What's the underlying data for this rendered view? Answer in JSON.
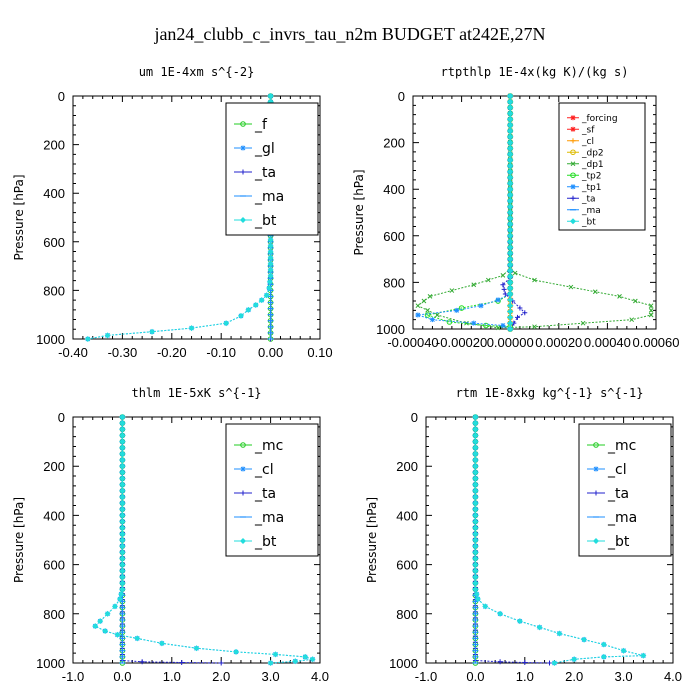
{
  "figure": {
    "title": "jan24_clubb_c_invrs_tau_n2m  BUDGET at242E,27N"
  },
  "chart_data": [
    {
      "type": "line",
      "title": "um   1E-4xm s^{-2}",
      "ylabel": "Pressure [hPa]",
      "xlim": [
        -0.4,
        0.1
      ],
      "ylim": [
        1000,
        0
      ],
      "xticks": [
        "-0.40",
        "-0.30",
        "-0.20",
        "-0.10",
        "0.00",
        "0.10"
      ],
      "xtick_values": [
        -0.4,
        -0.3,
        -0.2,
        -0.1,
        0.0,
        0.1
      ],
      "yticks": [
        "0",
        "200",
        "400",
        "600",
        "800",
        "1000"
      ],
      "ytick_values": [
        0,
        200,
        400,
        600,
        800,
        1000
      ],
      "legend_position": "top-right",
      "series": [
        {
          "name": "_f",
          "color": "#22cc22",
          "marker": "circle",
          "x": [
            0.0,
            0.0,
            0.0
          ],
          "y": [
            0,
            500,
            1000
          ]
        },
        {
          "name": "_gl",
          "color": "#1e8fff",
          "marker": "star",
          "x": [
            -0.37,
            -0.33,
            -0.24,
            -0.16,
            -0.09,
            -0.06,
            -0.045,
            -0.03,
            -0.018,
            -0.008,
            -0.003,
            0.0,
            0.0
          ],
          "y": [
            1000,
            985,
            970,
            955,
            935,
            905,
            880,
            860,
            840,
            820,
            790,
            740,
            0
          ]
        },
        {
          "name": "_ta",
          "color": "#2222cc",
          "marker": "plus",
          "x": [
            0.0,
            0.0
          ],
          "y": [
            0,
            1000
          ]
        },
        {
          "name": "_ma",
          "color": "#1e8fff",
          "marker": "dash",
          "x": [
            0.0,
            0.0
          ],
          "y": [
            0,
            1000
          ]
        },
        {
          "name": "_bt",
          "color": "#22dddd",
          "marker": "diamond",
          "x": [
            -0.37,
            -0.33,
            -0.24,
            -0.16,
            -0.09,
            -0.06,
            -0.045,
            -0.03,
            -0.018,
            -0.008,
            -0.003,
            0.0,
            0.0
          ],
          "y": [
            1000,
            985,
            970,
            955,
            935,
            905,
            880,
            860,
            840,
            820,
            790,
            740,
            0
          ]
        }
      ]
    },
    {
      "type": "line",
      "title": "rtpthlp   1E-4x(kg K)/(kg s)",
      "ylabel": "Pressure [hPa]",
      "xlim": [
        -0.0004,
        0.0006
      ],
      "ylim": [
        1000,
        0
      ],
      "xticks": [
        "-0.00040",
        "-0.00020",
        "0.00000",
        "0.00020",
        "0.00040",
        "0.00060"
      ],
      "xtick_values": [
        -0.0004,
        -0.0002,
        0.0,
        0.0002,
        0.0004,
        0.0006
      ],
      "yticks": [
        "0",
        "200",
        "400",
        "600",
        "800",
        "1000"
      ],
      "ytick_values": [
        0,
        200,
        400,
        600,
        800,
        1000
      ],
      "legend_position": "top-right",
      "series": [
        {
          "name": "_forcing",
          "color": "#ff2020",
          "marker": "star",
          "x": [
            0.0,
            0.0
          ],
          "y": [
            0,
            1000
          ]
        },
        {
          "name": "_sf",
          "color": "#ff2020",
          "marker": "star",
          "x": [
            0.0,
            0.0
          ],
          "y": [
            0,
            1000
          ]
        },
        {
          "name": "_cl",
          "color": "#ff9900",
          "marker": "plus",
          "x": [
            0.0,
            0.0
          ],
          "y": [
            0,
            1000
          ]
        },
        {
          "name": "_dp2",
          "color": "#ddbb00",
          "marker": "circle",
          "x": [
            0.0,
            0.0
          ],
          "y": [
            0,
            1000
          ]
        },
        {
          "name": "_dp1",
          "color": "#33aa33",
          "marker": "cross",
          "x": [
            0.0,
            0.0,
            -3e-05,
            -0.00015,
            -0.00033,
            -0.00038,
            -0.0003,
            -0.00018,
            -5e-05,
            0.0001,
            0.0003,
            0.0005,
            0.00058,
            0.00058,
            0.00045,
            0.00025,
            0.0001,
            2e-05,
            0.0
          ],
          "y": [
            0,
            740,
            770,
            810,
            860,
            900,
            940,
            975,
            995,
            990,
            975,
            960,
            940,
            900,
            860,
            820,
            790,
            760,
            740
          ]
        },
        {
          "name": "_tp2",
          "color": "#22dd22",
          "marker": "circle",
          "x": [
            0.0,
            0.0,
            -5e-05,
            -0.0002,
            -0.00034,
            -0.00025,
            -0.0001,
            0.0,
            0.0
          ],
          "y": [
            0,
            850,
            880,
            910,
            940,
            970,
            985,
            990,
            1000
          ]
        },
        {
          "name": "_tp1",
          "color": "#1e8fff",
          "marker": "star",
          "x": [
            0.0,
            0.0,
            -5e-05,
            -0.00012,
            -0.00022,
            -0.00038,
            -0.00032,
            -0.00015,
            -3e-05,
            0.0
          ],
          "y": [
            0,
            850,
            875,
            900,
            920,
            940,
            960,
            975,
            985,
            1000
          ]
        },
        {
          "name": "_ta",
          "color": "#2222cc",
          "marker": "plus",
          "x": [
            0.0,
            0.0,
            -3e-05,
            -2e-05,
            1e-05,
            4e-05,
            6e-05,
            3e-05,
            0.0
          ],
          "y": [
            0,
            780,
            810,
            850,
            880,
            910,
            930,
            950,
            1000
          ]
        },
        {
          "name": "_ma",
          "color": "#1e8fff",
          "marker": "dash",
          "x": [
            0.0,
            0.0
          ],
          "y": [
            0,
            1000
          ]
        },
        {
          "name": "_bt",
          "color": "#22dddd",
          "marker": "diamond",
          "x": [
            0.0,
            0.0
          ],
          "y": [
            0,
            1000
          ]
        }
      ]
    },
    {
      "type": "line",
      "title": "thlm   1E-5xK s^{-1}",
      "ylabel": "Pressure [hPa]",
      "xlim": [
        -1.0,
        4.0
      ],
      "ylim": [
        1000,
        0
      ],
      "xticks": [
        "-1.0",
        "0.0",
        "1.0",
        "2.0",
        "3.0",
        "4.0"
      ],
      "xtick_values": [
        -1.0,
        0.0,
        1.0,
        2.0,
        3.0,
        4.0
      ],
      "yticks": [
        "0",
        "200",
        "400",
        "600",
        "800",
        "1000"
      ],
      "ytick_values": [
        0,
        200,
        400,
        600,
        800,
        1000
      ],
      "legend_position": "top-right",
      "series": [
        {
          "name": "_mc",
          "color": "#22cc22",
          "marker": "circle",
          "x": [
            0.0,
            0.0
          ],
          "y": [
            0,
            1000
          ]
        },
        {
          "name": "_cl",
          "color": "#1e8fff",
          "marker": "star",
          "x": [
            0.0,
            0.0,
            -0.05,
            -0.15,
            -0.3,
            -0.45,
            -0.55,
            -0.35,
            -0.1,
            0.3,
            0.8,
            1.5,
            2.3,
            3.1,
            3.7,
            3.85,
            3.5,
            3.0
          ],
          "y": [
            0,
            700,
            740,
            770,
            800,
            830,
            850,
            870,
            885,
            900,
            920,
            940,
            955,
            965,
            975,
            985,
            993,
            1000
          ]
        },
        {
          "name": "_ta",
          "color": "#2222cc",
          "marker": "plus",
          "x": [
            0.0,
            0.0,
            0.4,
            1.2,
            2.0
          ],
          "y": [
            0,
            990,
            995,
            998,
            1000
          ]
        },
        {
          "name": "_ma",
          "color": "#1e8fff",
          "marker": "dash",
          "x": [
            0.0,
            0.0
          ],
          "y": [
            0,
            1000
          ]
        },
        {
          "name": "_bt",
          "color": "#22dddd",
          "marker": "diamond",
          "x": [
            0.0,
            0.0,
            -0.05,
            -0.15,
            -0.3,
            -0.45,
            -0.55,
            -0.35,
            -0.1,
            0.3,
            0.8,
            1.5,
            2.3,
            3.1,
            3.7,
            3.85,
            3.5,
            3.0
          ],
          "y": [
            0,
            700,
            740,
            770,
            800,
            830,
            850,
            870,
            885,
            900,
            920,
            940,
            955,
            965,
            975,
            985,
            993,
            1000
          ]
        }
      ]
    },
    {
      "type": "line",
      "title": "rtm   1E-8xkg kg^{-1} s^{-1}",
      "ylabel": "Pressure [hPa]",
      "xlim": [
        -1.0,
        4.0
      ],
      "ylim": [
        1000,
        0
      ],
      "xticks": [
        "-1.0",
        "0.0",
        "1.0",
        "2.0",
        "3.0",
        "4.0"
      ],
      "xtick_values": [
        -1.0,
        0.0,
        1.0,
        2.0,
        3.0,
        4.0
      ],
      "yticks": [
        "0",
        "200",
        "400",
        "600",
        "800",
        "1000"
      ],
      "ytick_values": [
        0,
        200,
        400,
        600,
        800,
        1000
      ],
      "legend_position": "top-right",
      "series": [
        {
          "name": "_mc",
          "color": "#22cc22",
          "marker": "circle",
          "x": [
            0.0,
            0.0
          ],
          "y": [
            0,
            1000
          ]
        },
        {
          "name": "_cl",
          "color": "#1e8fff",
          "marker": "star",
          "x": [
            0.0,
            0.0,
            0.05,
            0.2,
            0.5,
            0.9,
            1.3,
            1.7,
            2.2,
            2.6,
            3.0,
            3.4,
            2.6,
            2.0,
            1.6
          ],
          "y": [
            0,
            700,
            740,
            770,
            800,
            830,
            855,
            880,
            905,
            925,
            950,
            970,
            975,
            985,
            1000
          ]
        },
        {
          "name": "_ta",
          "color": "#2222cc",
          "marker": "plus",
          "x": [
            0.0,
            0.0,
            0.5,
            1.0,
            1.5
          ],
          "y": [
            0,
            990,
            995,
            998,
            1000
          ]
        },
        {
          "name": "_ma",
          "color": "#1e8fff",
          "marker": "dash",
          "x": [
            0.0,
            0.0
          ],
          "y": [
            0,
            1000
          ]
        },
        {
          "name": "_bt",
          "color": "#22dddd",
          "marker": "diamond",
          "x": [
            0.0,
            0.0,
            0.05,
            0.2,
            0.5,
            0.9,
            1.3,
            1.7,
            2.2,
            2.6,
            3.0,
            3.4,
            2.6,
            2.0,
            1.6
          ],
          "y": [
            0,
            700,
            740,
            770,
            800,
            830,
            855,
            880,
            905,
            925,
            950,
            970,
            975,
            985,
            1000
          ]
        }
      ]
    }
  ]
}
